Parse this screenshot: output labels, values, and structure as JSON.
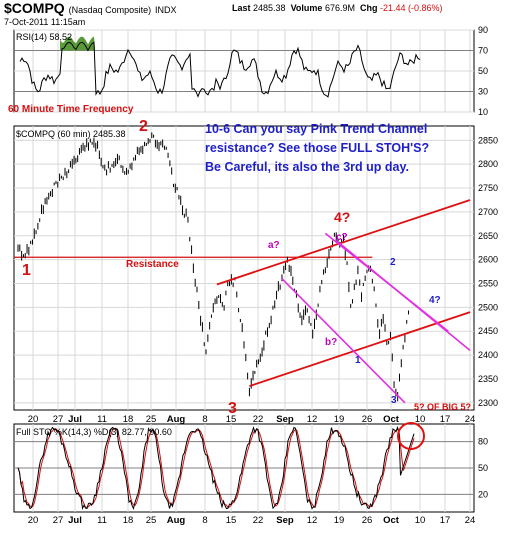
{
  "header": {
    "symbol": "$COMPQ",
    "name": "(Nasdaq Composite)",
    "exchange": "INDX",
    "date": "7-Oct-2011 11:15am",
    "last_label": "Last",
    "last_value": "2485.38",
    "volume_label": "Volume",
    "volume_value": "676.9M",
    "chg_label": "Chg",
    "chg_value": "-21.44 (-0.86%)",
    "chg_color": "#d41010"
  },
  "annotations": {
    "time_frequency": "60 Minute Time Frequency",
    "comment": "10-6 Can you say Pink Trend Channel resistance? See those FULL STOH'S?  Be Careful, its also the 3rd up day.",
    "wave_1": "1",
    "wave_2": "2",
    "wave_3": "3",
    "wave_4q": "4?",
    "resistance": "Resistance",
    "a_q": "a?",
    "b_q": "b?",
    "c_q": "c?",
    "small_1": "1",
    "small_2": "2",
    "small_3": "3",
    "small_4q": "4?",
    "five_q": "5? OF BIG 5?"
  },
  "chart_data": [
    {
      "type": "line",
      "panel": "rsi",
      "title": "RSI(14) 58.52",
      "ylim": [
        10,
        90
      ],
      "yticks": [
        90,
        70,
        50,
        30,
        10
      ],
      "overbought": 70,
      "oversold": 30,
      "color": "#000000",
      "fill_color": "#5a9a3a"
    },
    {
      "type": "line",
      "panel": "price",
      "title": "$COMPQ (60 min) 2485.38",
      "ylim": [
        2285,
        2880
      ],
      "yticks": [
        2850,
        2800,
        2750,
        2700,
        2650,
        2600,
        2550,
        2500,
        2450,
        2400,
        2350,
        2300
      ],
      "x_ticks": [
        "20",
        "27",
        "Jul",
        "11",
        "18",
        "25",
        "Aug",
        "8",
        "15",
        "22",
        "Sep",
        "12",
        "19",
        "26",
        "Oct",
        "10",
        "17",
        "24"
      ],
      "trend_points": [
        [
          0,
          2620
        ],
        [
          4,
          2610
        ],
        [
          8,
          2640
        ],
        [
          12,
          2690
        ],
        [
          18,
          2740
        ],
        [
          24,
          2770
        ],
        [
          30,
          2800
        ],
        [
          34,
          2820
        ],
        [
          38,
          2845
        ],
        [
          44,
          2835
        ],
        [
          48,
          2790
        ],
        [
          52,
          2790
        ],
        [
          56,
          2810
        ],
        [
          60,
          2780
        ],
        [
          64,
          2810
        ],
        [
          66,
          2830
        ],
        [
          70,
          2840
        ],
        [
          74,
          2860
        ],
        [
          78,
          2840
        ],
        [
          82,
          2830
        ],
        [
          86,
          2760
        ],
        [
          90,
          2720
        ],
        [
          94,
          2680
        ],
        [
          98,
          2560
        ],
        [
          102,
          2450
        ],
        [
          104,
          2400
        ],
        [
          106,
          2470
        ],
        [
          110,
          2520
        ],
        [
          114,
          2500
        ],
        [
          116,
          2545
        ],
        [
          120,
          2555
        ],
        [
          122,
          2500
        ],
        [
          125,
          2430
        ],
        [
          128,
          2330
        ],
        [
          131,
          2360
        ],
        [
          134,
          2400
        ],
        [
          137,
          2440
        ],
        [
          140,
          2480
        ],
        [
          143,
          2530
        ],
        [
          146,
          2560
        ],
        [
          149,
          2600
        ],
        [
          152,
          2560
        ],
        [
          154,
          2520
        ],
        [
          157,
          2470
        ],
        [
          160,
          2500
        ],
        [
          163,
          2440
        ],
        [
          166,
          2500
        ],
        [
          168,
          2560
        ],
        [
          171,
          2600
        ],
        [
          174,
          2640
        ],
        [
          176,
          2655
        ],
        [
          178,
          2625
        ],
        [
          180,
          2645
        ],
        [
          182,
          2590
        ],
        [
          184,
          2500
        ],
        [
          186,
          2540
        ],
        [
          188,
          2580
        ],
        [
          190,
          2520
        ],
        [
          192,
          2560
        ],
        [
          194,
          2590
        ],
        [
          196,
          2560
        ],
        [
          198,
          2500
        ],
        [
          200,
          2450
        ],
        [
          202,
          2480
        ],
        [
          204,
          2420
        ],
        [
          206,
          2440
        ],
        [
          208,
          2340
        ],
        [
          210,
          2310
        ],
        [
          212,
          2380
        ],
        [
          214,
          2440
        ],
        [
          216,
          2485
        ]
      ],
      "resistance_level": 2605,
      "red_channel_upper": [
        [
          110,
          2548
        ],
        [
          250,
          2725
        ]
      ],
      "red_channel_lower": [
        [
          128,
          2335
        ],
        [
          250,
          2490
        ]
      ],
      "pink_upper": [
        [
          176,
          2640
        ],
        [
          250,
          2410
        ]
      ],
      "pink_lower": [
        [
          146,
          2560
        ],
        [
          214,
          2300
        ]
      ],
      "pink_third": [
        [
          170,
          2655
        ],
        [
          238,
          2450
        ]
      ]
    },
    {
      "type": "line",
      "panel": "stochastic",
      "title": "Full STO %K(14,3) %D(3) 82.77, 90.60",
      "ylim": [
        0,
        100
      ],
      "yticks": [
        80,
        50,
        20
      ],
      "k_color": "#000000",
      "d_color": "#d41010",
      "x_ticks": [
        "20",
        "27",
        "Jul",
        "11",
        "18",
        "25",
        "Aug",
        "8",
        "15",
        "22",
        "Sep",
        "12",
        "19",
        "26",
        "Oct",
        "10",
        "17",
        "24"
      ]
    }
  ]
}
